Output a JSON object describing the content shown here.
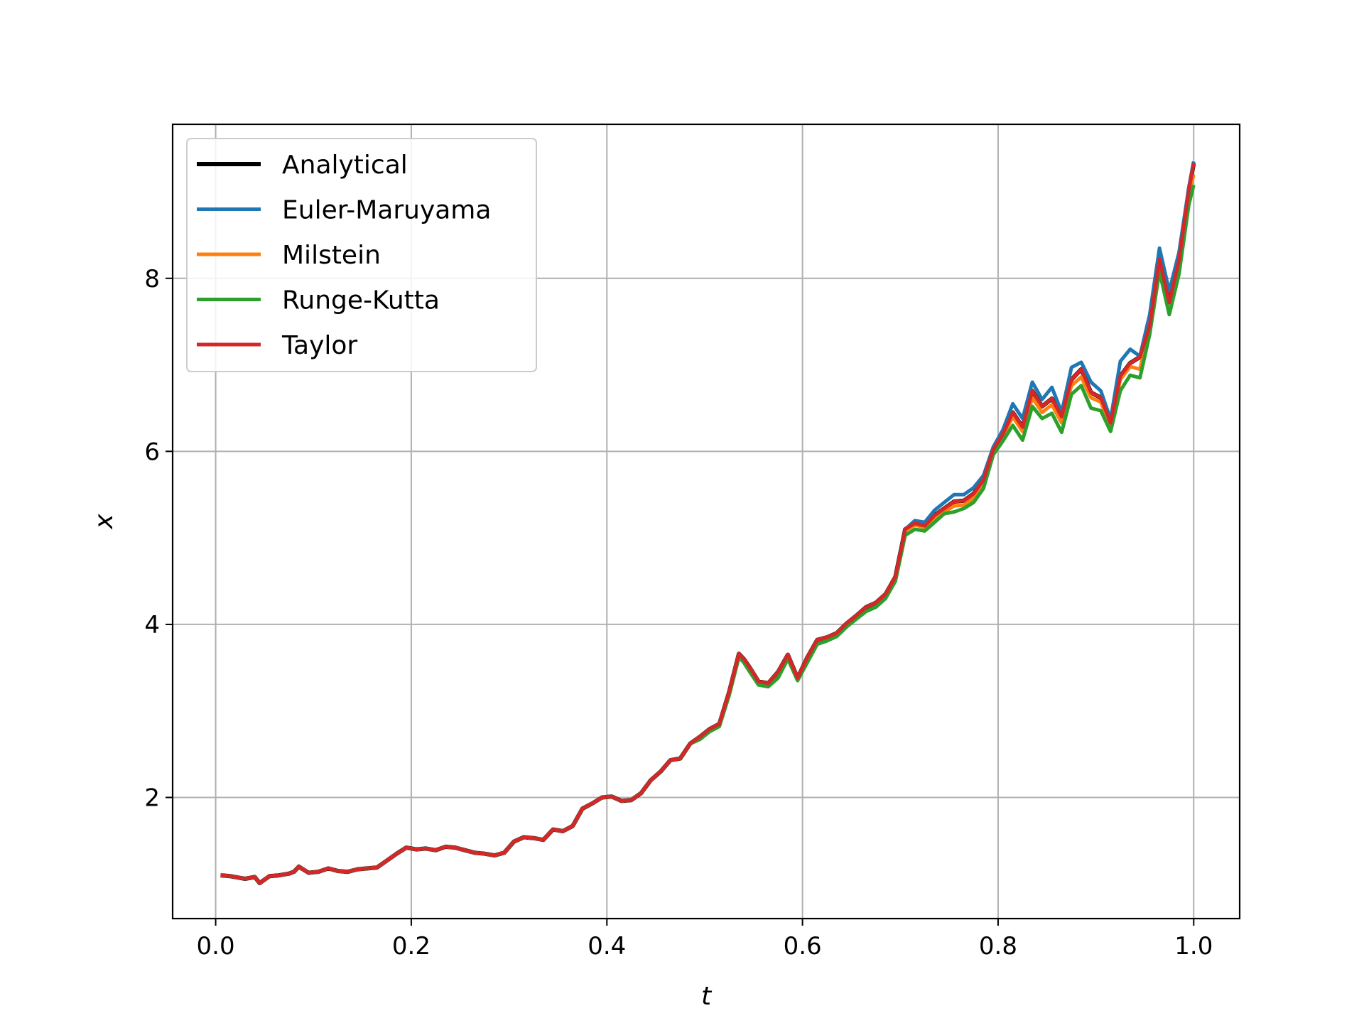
{
  "chart_data": {
    "type": "line",
    "title": "",
    "xlabel": "t",
    "ylabel": "x",
    "xlim": [
      -0.044,
      1.047
    ],
    "ylim": [
      0.6,
      9.78
    ],
    "xticks": [
      0.0,
      0.2,
      0.4,
      0.6,
      0.8,
      1.0
    ],
    "xtick_labels": [
      "0.0",
      "0.2",
      "0.4",
      "0.6",
      "0.8",
      "1.0"
    ],
    "yticks": [
      2,
      4,
      6,
      8
    ],
    "ytick_labels": [
      "2",
      "4",
      "6",
      "8"
    ],
    "grid": true,
    "legend_position": "top-left",
    "x": [
      0.005,
      0.015,
      0.025,
      0.03,
      0.04,
      0.045,
      0.055,
      0.065,
      0.075,
      0.08,
      0.085,
      0.095,
      0.105,
      0.115,
      0.125,
      0.135,
      0.145,
      0.155,
      0.165,
      0.175,
      0.185,
      0.195,
      0.205,
      0.215,
      0.225,
      0.235,
      0.245,
      0.255,
      0.265,
      0.275,
      0.285,
      0.295,
      0.305,
      0.315,
      0.325,
      0.335,
      0.345,
      0.355,
      0.365,
      0.375,
      0.385,
      0.395,
      0.405,
      0.415,
      0.425,
      0.435,
      0.445,
      0.455,
      0.465,
      0.475,
      0.485,
      0.495,
      0.505,
      0.515,
      0.525,
      0.535,
      0.54,
      0.545,
      0.555,
      0.565,
      0.575,
      0.585,
      0.595,
      0.605,
      0.615,
      0.625,
      0.635,
      0.645,
      0.655,
      0.665,
      0.675,
      0.685,
      0.695,
      0.705,
      0.715,
      0.725,
      0.735,
      0.745,
      0.755,
      0.765,
      0.775,
      0.785,
      0.795,
      0.805,
      0.815,
      0.825,
      0.835,
      0.845,
      0.855,
      0.865,
      0.875,
      0.885,
      0.895,
      0.905,
      0.915,
      0.925,
      0.935,
      0.945,
      0.955,
      0.965,
      0.975,
      0.985,
      0.995,
      1.0
    ],
    "series": [
      {
        "name": "Analytical",
        "color": "#000000",
        "values": [
          1.1,
          1.09,
          1.07,
          1.06,
          1.08,
          1.01,
          1.09,
          1.1,
          1.12,
          1.14,
          1.2,
          1.13,
          1.14,
          1.18,
          1.15,
          1.14,
          1.17,
          1.18,
          1.19,
          1.27,
          1.35,
          1.42,
          1.4,
          1.41,
          1.39,
          1.43,
          1.42,
          1.39,
          1.36,
          1.35,
          1.33,
          1.36,
          1.49,
          1.54,
          1.53,
          1.51,
          1.63,
          1.61,
          1.67,
          1.87,
          1.93,
          2.0,
          2.01,
          1.96,
          1.97,
          2.05,
          2.2,
          2.3,
          2.43,
          2.45,
          2.62,
          2.7,
          2.79,
          2.85,
          3.22,
          3.66,
          3.6,
          3.52,
          3.34,
          3.32,
          3.45,
          3.65,
          3.38,
          3.62,
          3.82,
          3.85,
          3.9,
          4.01,
          4.1,
          4.2,
          4.25,
          4.35,
          4.55,
          5.1,
          5.17,
          5.14,
          5.26,
          5.34,
          5.42,
          5.43,
          5.51,
          5.67,
          6.02,
          6.2,
          6.45,
          6.28,
          6.7,
          6.52,
          6.61,
          6.4,
          6.83,
          6.95,
          6.68,
          6.62,
          6.33,
          6.87,
          7.02,
          7.09,
          7.45,
          8.22,
          7.72,
          8.21,
          9.02,
          9.33
        ]
      },
      {
        "name": "Euler-Maruyama",
        "color": "#1f77b4",
        "values": [
          1.1,
          1.09,
          1.07,
          1.06,
          1.08,
          1.01,
          1.09,
          1.1,
          1.12,
          1.14,
          1.2,
          1.13,
          1.14,
          1.18,
          1.15,
          1.14,
          1.17,
          1.18,
          1.19,
          1.27,
          1.35,
          1.42,
          1.4,
          1.41,
          1.39,
          1.43,
          1.42,
          1.39,
          1.36,
          1.35,
          1.33,
          1.36,
          1.49,
          1.54,
          1.53,
          1.51,
          1.63,
          1.61,
          1.67,
          1.87,
          1.93,
          2.0,
          2.01,
          1.96,
          1.97,
          2.05,
          2.2,
          2.3,
          2.43,
          2.45,
          2.62,
          2.7,
          2.79,
          2.85,
          3.22,
          3.66,
          3.6,
          3.52,
          3.34,
          3.32,
          3.45,
          3.65,
          3.38,
          3.62,
          3.82,
          3.85,
          3.9,
          4.01,
          4.1,
          4.2,
          4.25,
          4.35,
          4.55,
          5.1,
          5.2,
          5.18,
          5.32,
          5.41,
          5.5,
          5.5,
          5.58,
          5.72,
          6.05,
          6.25,
          6.55,
          6.38,
          6.8,
          6.6,
          6.74,
          6.45,
          6.97,
          7.03,
          6.8,
          6.7,
          6.37,
          7.04,
          7.18,
          7.1,
          7.58,
          8.35,
          7.85,
          8.3,
          9.05,
          9.35
        ]
      },
      {
        "name": "Milstein",
        "color": "#ff7f0e",
        "values": [
          1.1,
          1.09,
          1.07,
          1.06,
          1.08,
          1.01,
          1.09,
          1.1,
          1.12,
          1.14,
          1.2,
          1.13,
          1.14,
          1.18,
          1.15,
          1.14,
          1.17,
          1.18,
          1.19,
          1.27,
          1.35,
          1.42,
          1.4,
          1.41,
          1.39,
          1.43,
          1.42,
          1.39,
          1.36,
          1.35,
          1.33,
          1.36,
          1.49,
          1.54,
          1.53,
          1.51,
          1.63,
          1.61,
          1.67,
          1.87,
          1.93,
          2.0,
          2.01,
          1.96,
          1.97,
          2.05,
          2.2,
          2.3,
          2.43,
          2.45,
          2.62,
          2.7,
          2.79,
          2.85,
          3.22,
          3.66,
          3.6,
          3.52,
          3.34,
          3.32,
          3.45,
          3.65,
          3.38,
          3.62,
          3.82,
          3.85,
          3.9,
          4.01,
          4.1,
          4.2,
          4.25,
          4.35,
          4.55,
          5.08,
          5.15,
          5.12,
          5.22,
          5.3,
          5.37,
          5.38,
          5.46,
          5.62,
          6.0,
          6.18,
          6.4,
          6.23,
          6.62,
          6.45,
          6.54,
          6.33,
          6.76,
          6.86,
          6.62,
          6.57,
          6.3,
          6.83,
          6.98,
          6.95,
          7.45,
          8.2,
          7.7,
          8.18,
          8.98,
          9.2
        ]
      },
      {
        "name": "Runge-Kutta",
        "color": "#2ca02c",
        "values": [
          1.1,
          1.09,
          1.07,
          1.06,
          1.08,
          1.01,
          1.09,
          1.1,
          1.12,
          1.14,
          1.2,
          1.13,
          1.14,
          1.18,
          1.15,
          1.14,
          1.17,
          1.18,
          1.19,
          1.27,
          1.35,
          1.42,
          1.4,
          1.41,
          1.39,
          1.43,
          1.42,
          1.39,
          1.36,
          1.35,
          1.33,
          1.36,
          1.49,
          1.54,
          1.53,
          1.51,
          1.63,
          1.61,
          1.67,
          1.87,
          1.93,
          2.0,
          2.01,
          1.96,
          1.97,
          2.05,
          2.2,
          2.3,
          2.43,
          2.45,
          2.62,
          2.67,
          2.76,
          2.82,
          3.18,
          3.62,
          3.56,
          3.47,
          3.3,
          3.28,
          3.38,
          3.6,
          3.35,
          3.56,
          3.77,
          3.81,
          3.86,
          3.97,
          4.06,
          4.15,
          4.2,
          4.3,
          4.5,
          5.03,
          5.1,
          5.08,
          5.18,
          5.28,
          5.3,
          5.34,
          5.41,
          5.57,
          5.96,
          6.12,
          6.3,
          6.13,
          6.52,
          6.38,
          6.44,
          6.22,
          6.66,
          6.76,
          6.5,
          6.47,
          6.23,
          6.7,
          6.88,
          6.85,
          7.35,
          8.08,
          7.58,
          8.05,
          8.85,
          9.08
        ]
      },
      {
        "name": "Taylor",
        "color": "#d62728",
        "values": [
          1.1,
          1.09,
          1.07,
          1.06,
          1.08,
          1.01,
          1.09,
          1.1,
          1.12,
          1.14,
          1.2,
          1.13,
          1.14,
          1.18,
          1.15,
          1.14,
          1.17,
          1.18,
          1.19,
          1.27,
          1.35,
          1.42,
          1.4,
          1.41,
          1.39,
          1.43,
          1.42,
          1.39,
          1.36,
          1.35,
          1.33,
          1.36,
          1.49,
          1.54,
          1.53,
          1.51,
          1.63,
          1.61,
          1.67,
          1.87,
          1.93,
          2.0,
          2.01,
          1.96,
          1.97,
          2.05,
          2.2,
          2.3,
          2.43,
          2.45,
          2.62,
          2.7,
          2.79,
          2.85,
          3.22,
          3.66,
          3.6,
          3.52,
          3.34,
          3.32,
          3.45,
          3.65,
          3.38,
          3.62,
          3.82,
          3.85,
          3.9,
          4.01,
          4.1,
          4.2,
          4.25,
          4.35,
          4.55,
          5.1,
          5.17,
          5.14,
          5.26,
          5.34,
          5.42,
          5.43,
          5.51,
          5.67,
          6.02,
          6.2,
          6.45,
          6.28,
          6.7,
          6.52,
          6.61,
          6.4,
          6.83,
          6.95,
          6.68,
          6.62,
          6.33,
          6.87,
          7.02,
          7.09,
          7.45,
          8.22,
          7.72,
          8.21,
          9.02,
          9.33
        ]
      }
    ]
  }
}
